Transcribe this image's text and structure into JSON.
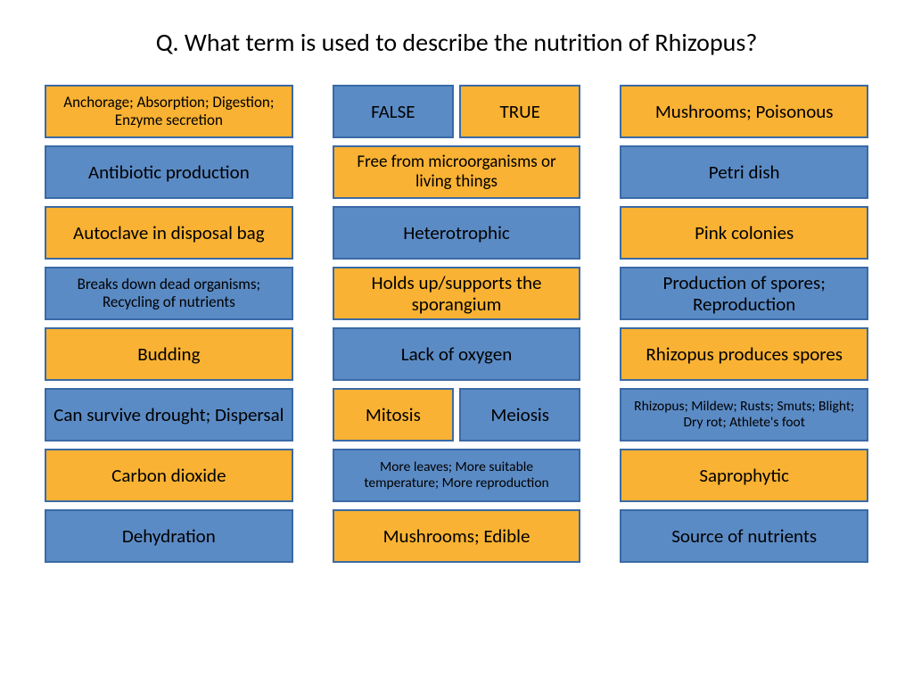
{
  "question": "Q. What term is used to describe the nutrition of Rhizopus?",
  "colors": {
    "yellow_bg": "#f9b233",
    "blue_bg": "#5b8bc5",
    "border": "#3a6aa6",
    "text": "#000000",
    "page_bg": "#ffffff"
  },
  "columns": [
    [
      {
        "text": "Anchorage; Absorption; Digestion; Enzyme secretion",
        "style": "yellow",
        "size": "fs-sm"
      },
      {
        "text": "Antibiotic production",
        "style": "blue",
        "size": "fs-lg"
      },
      {
        "text": "Autoclave in disposal bag",
        "style": "yellow",
        "size": "fs-lg"
      },
      {
        "text": "Breaks down dead organisms; Recycling of nutrients",
        "style": "blue",
        "size": "fs-sm"
      },
      {
        "text": "Budding",
        "style": "yellow",
        "size": "fs-lg"
      },
      {
        "text": "Can survive drought; Dispersal",
        "style": "blue",
        "size": "fs-lg"
      },
      {
        "text": "Carbon dioxide",
        "style": "yellow",
        "size": "fs-lg"
      },
      {
        "text": "Dehydration",
        "style": "blue",
        "size": "fs-lg"
      }
    ],
    [
      {
        "split": [
          {
            "text": "FALSE",
            "style": "blue",
            "size": "fs-lg"
          },
          {
            "text": "TRUE",
            "style": "yellow",
            "size": "fs-lg"
          }
        ]
      },
      {
        "text": "Free from microorganisms or living things",
        "style": "yellow",
        "size": "fs-md"
      },
      {
        "text": "Heterotrophic",
        "style": "blue",
        "size": "fs-lg"
      },
      {
        "text": "Holds up/supports the sporangium",
        "style": "yellow",
        "size": "fs-lg"
      },
      {
        "text": "Lack of oxygen",
        "style": "blue",
        "size": "fs-lg"
      },
      {
        "split": [
          {
            "text": "Mitosis",
            "style": "yellow",
            "size": "fs-lg"
          },
          {
            "text": "Meiosis",
            "style": "blue",
            "size": "fs-lg"
          }
        ]
      },
      {
        "text": "More leaves; More suitable temperature; More reproduction",
        "style": "blue",
        "size": "fs-xs"
      },
      {
        "text": "Mushrooms; Edible",
        "style": "yellow",
        "size": "fs-lg"
      }
    ],
    [
      {
        "text": "Mushrooms; Poisonous",
        "style": "yellow",
        "size": "fs-lg"
      },
      {
        "text": "Petri dish",
        "style": "blue",
        "size": "fs-lg"
      },
      {
        "text": "Pink colonies",
        "style": "yellow",
        "size": "fs-lg"
      },
      {
        "text": "Production of spores; Reproduction",
        "style": "blue",
        "size": "fs-lg"
      },
      {
        "text": "Rhizopus produces spores",
        "style": "yellow",
        "size": "fs-lg"
      },
      {
        "text": "Rhizopus; Mildew; Rusts; Smuts; Blight; Dry rot; Athlete's foot",
        "style": "blue",
        "size": "fs-xs"
      },
      {
        "text": "Saprophytic",
        "style": "yellow",
        "size": "fs-lg"
      },
      {
        "text": "Source of nutrients",
        "style": "blue",
        "size": "fs-lg"
      }
    ]
  ]
}
